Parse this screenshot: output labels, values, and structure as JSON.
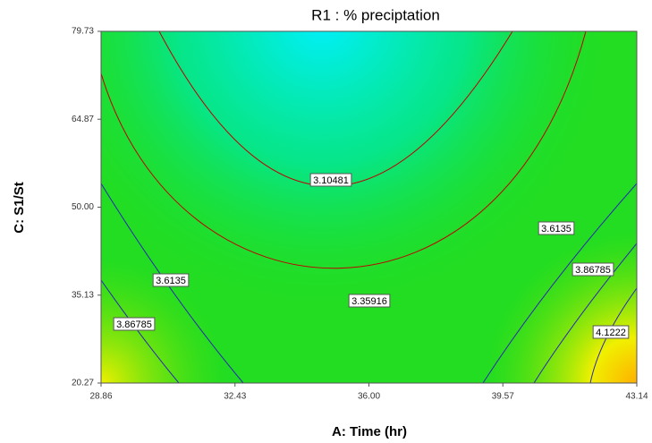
{
  "chart_data": {
    "type": "contour",
    "title": "R1 : % preciptation",
    "x_label": "A: Time (hr)",
    "y_label": "C: S1/St",
    "xlim": [
      28.86,
      43.14
    ],
    "xticks": [
      28.86,
      32.43,
      {
        "value": 36,
        "label": "36.00"
      },
      39.57,
      43.14
    ],
    "ylim": [
      20.27,
      79.73
    ],
    "yticks": [
      20.27,
      35.13,
      {
        "value": 50,
        "label": "50.00"
      },
      64.87,
      79.73
    ],
    "levels": [
      3.10481,
      3.35916,
      3.6135,
      3.86785,
      4.1222
    ],
    "level_colors": [
      "#c00000",
      "#c00000",
      "#2a2ab0",
      "#2a2ab0",
      "#2a2ab0"
    ]
  }
}
